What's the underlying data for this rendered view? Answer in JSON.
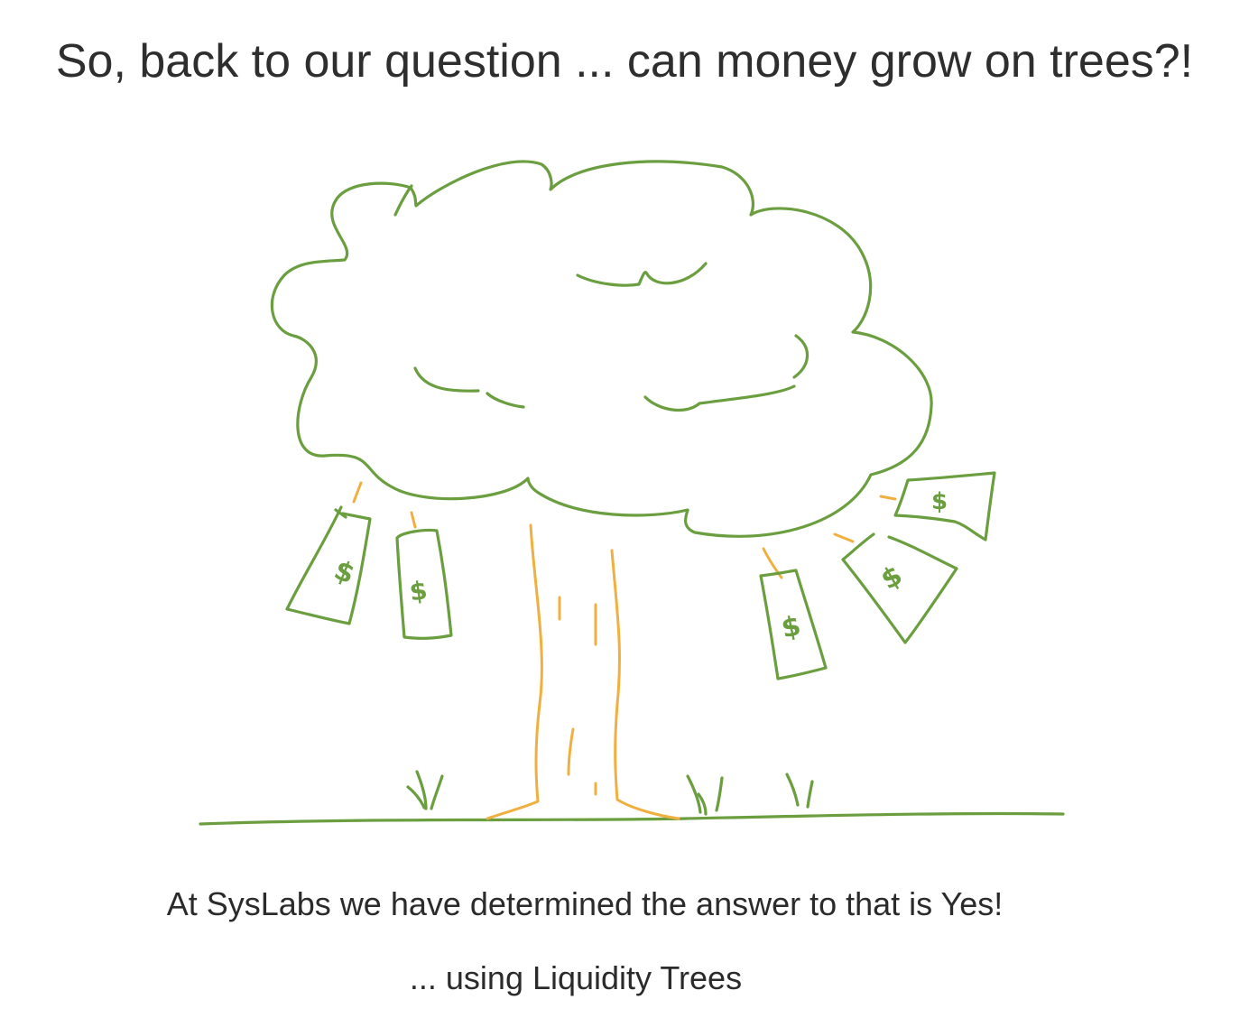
{
  "title": "So, back to our question ... can money grow on trees?!",
  "illustration": {
    "icon": "money-tree-icon",
    "bill_symbol": "$",
    "colors": {
      "foliage": "#6a9e3f",
      "trunk": "#f0b040"
    }
  },
  "body": {
    "line1": "At SysLabs we have determined the answer to that is Yes!",
    "line2": "... using Liquidity Trees"
  }
}
